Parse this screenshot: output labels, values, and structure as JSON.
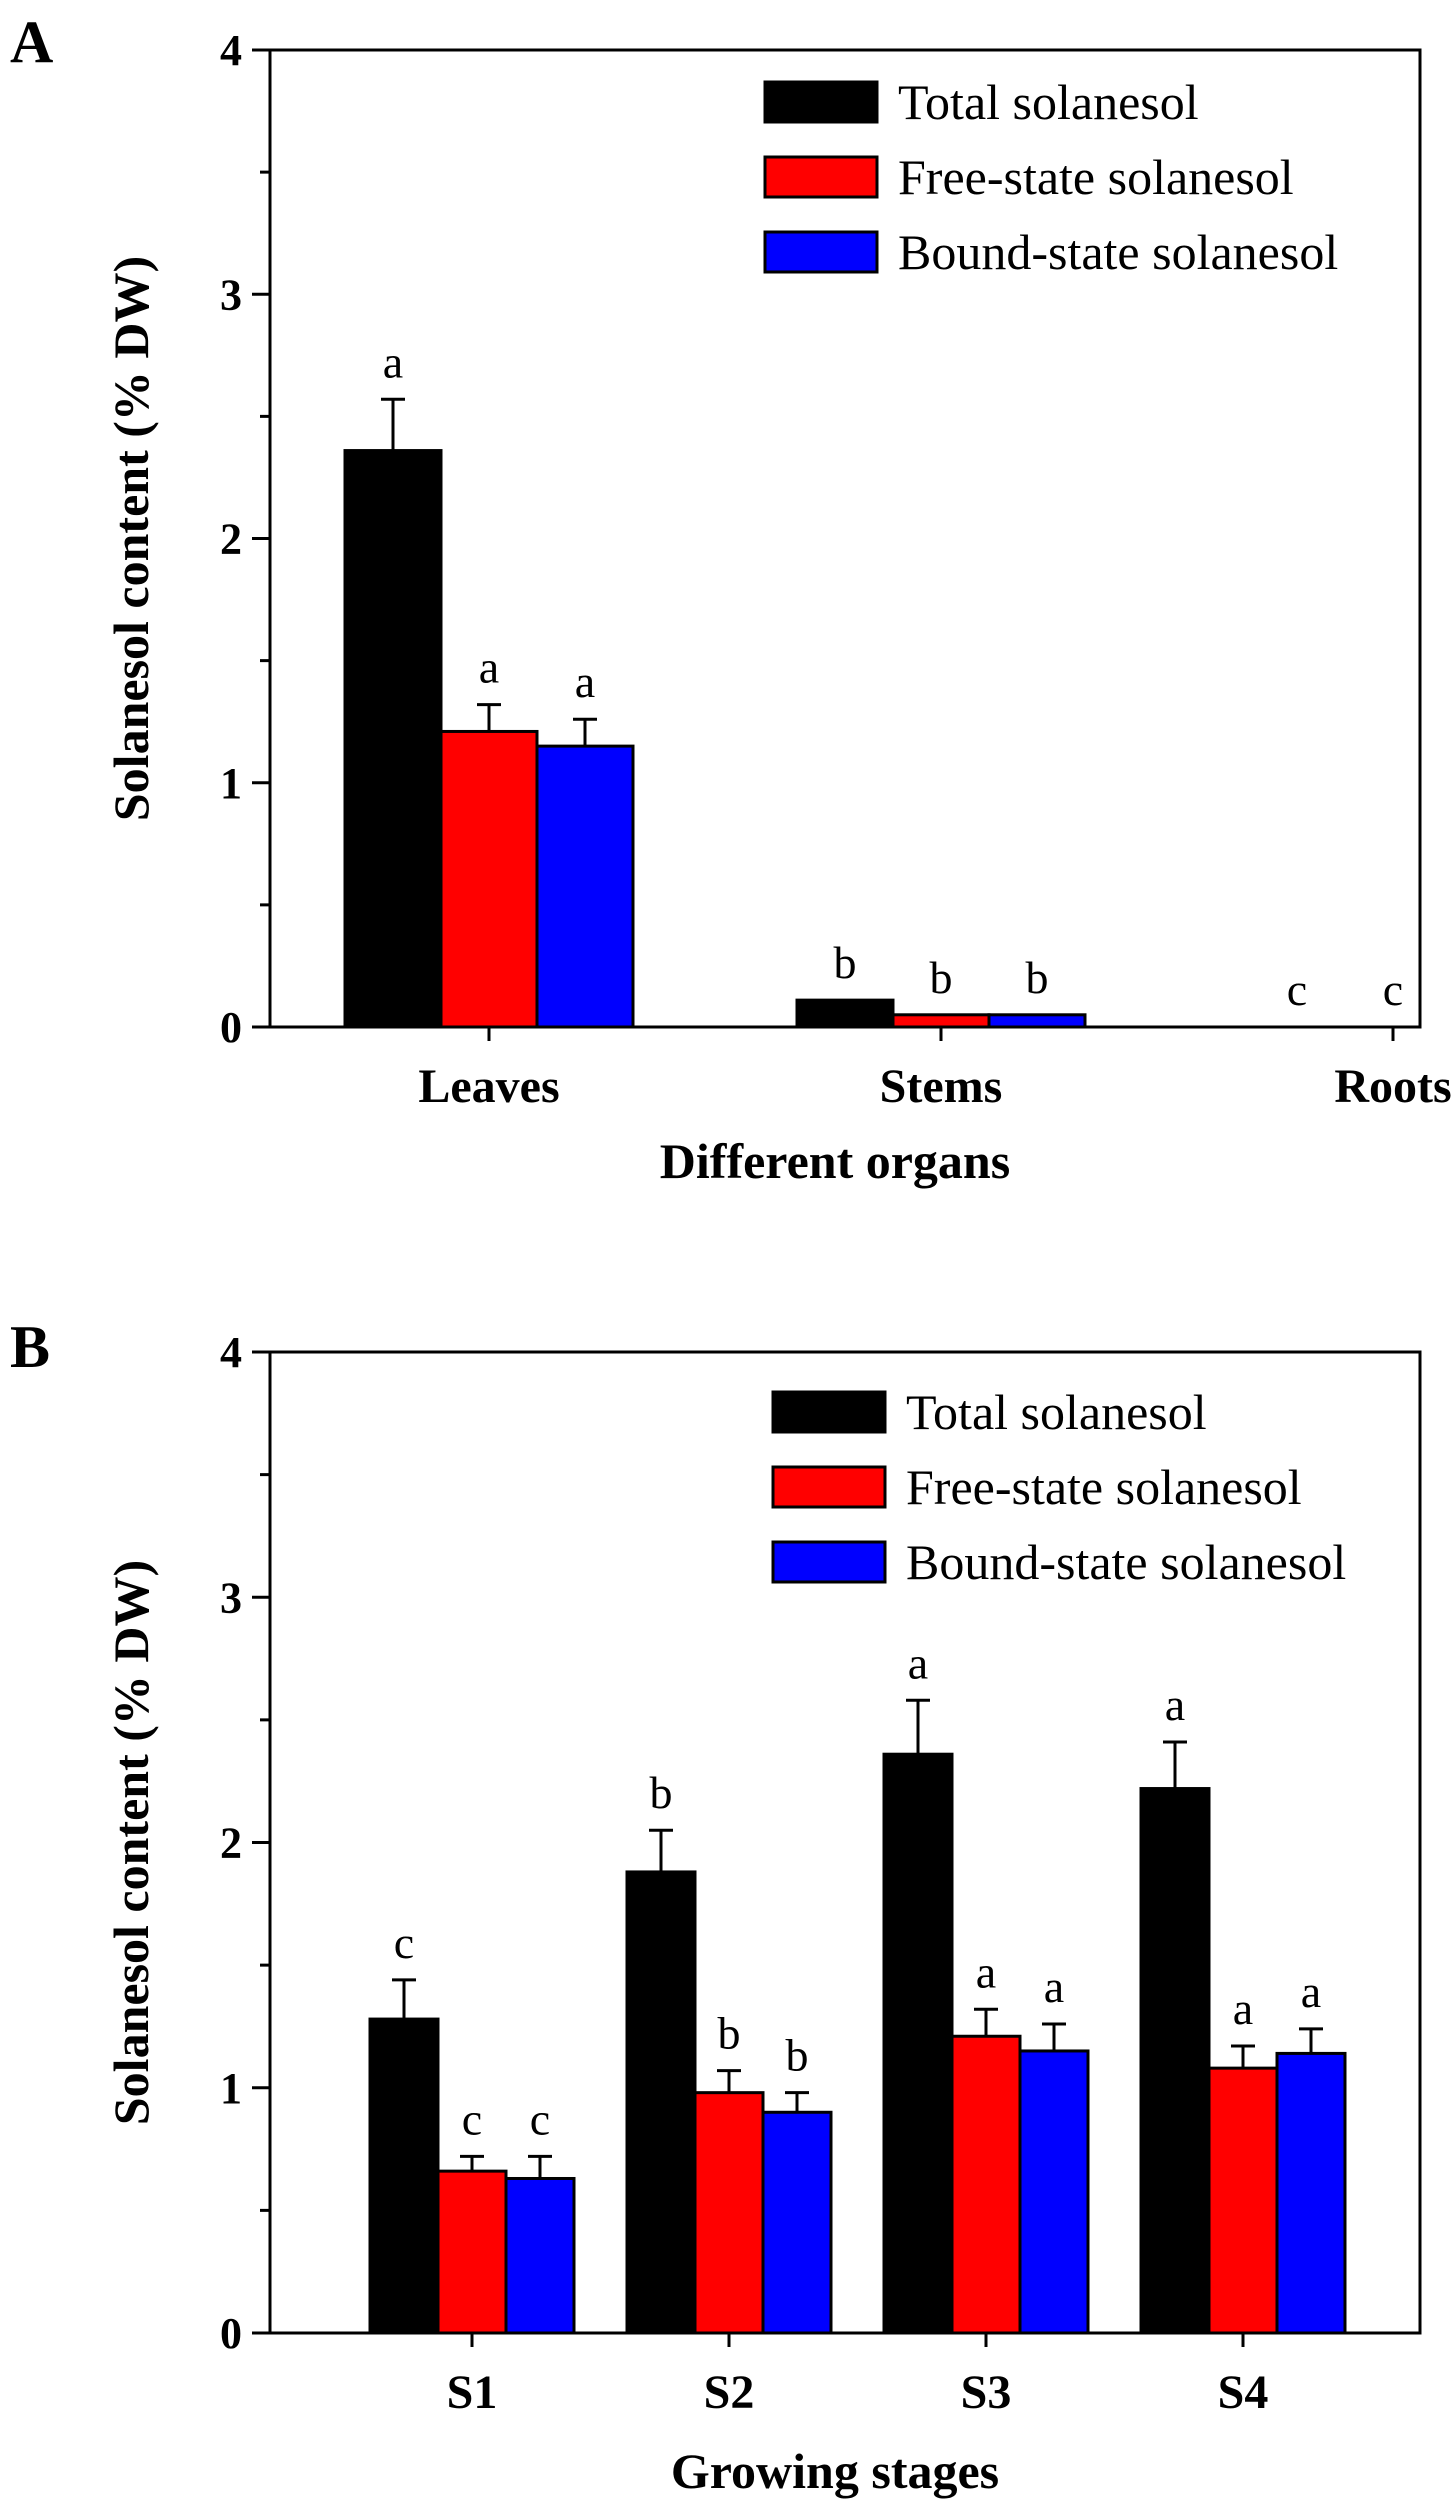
{
  "figure": {
    "panels": [
      {
        "letter": "A",
        "ylabel": "Solanesol content (% DW)",
        "xlabel": "Different organs",
        "legend": [
          "Total solanesol",
          "Free-state solanesol",
          "Bound-state solanesol"
        ]
      },
      {
        "letter": "B",
        "ylabel": "Solanesol content (% DW)",
        "xlabel": "Growing stages",
        "legend": [
          "Total solanesol",
          "Free-state solanesol",
          "Bound-state solanesol"
        ]
      }
    ]
  },
  "chart_data": [
    {
      "type": "bar",
      "panel": "A",
      "title": "",
      "xlabel": "Different organs",
      "ylabel": "Solanesol content (% DW)",
      "ylim": [
        0,
        4
      ],
      "yticks": [
        "0",
        "1",
        "2",
        "3",
        "4"
      ],
      "categories": [
        "Leaves",
        "Stems",
        "Roots"
      ],
      "legend_position": "top-right",
      "grid": false,
      "series": [
        {
          "name": "Total solanesol",
          "color": "#000000",
          "values": [
            2.36,
            0.11,
            0.0
          ],
          "errors": [
            0.21,
            0.0,
            0.0
          ],
          "labels": [
            "a",
            "b",
            "c"
          ]
        },
        {
          "name": "Free-state solanesol",
          "color": "#ff0000",
          "values": [
            1.21,
            0.05,
            0.0
          ],
          "errors": [
            0.11,
            0.0,
            0.0
          ],
          "labels": [
            "a",
            "b",
            "c"
          ]
        },
        {
          "name": "Bound-state solanesol",
          "color": "#0000ff",
          "values": [
            1.15,
            0.05,
            0.0
          ],
          "errors": [
            0.11,
            0.0,
            0.0
          ],
          "labels": [
            "a",
            "b",
            "c"
          ]
        }
      ]
    },
    {
      "type": "bar",
      "panel": "B",
      "title": "",
      "xlabel": "Growing stages",
      "ylabel": "Solanesol content (% DW)",
      "ylim": [
        0,
        4
      ],
      "yticks": [
        "0",
        "1",
        "2",
        "3",
        "4"
      ],
      "categories": [
        "S1",
        "S2",
        "S3",
        "S4"
      ],
      "legend_position": "top-right",
      "grid": false,
      "series": [
        {
          "name": "Total solanesol",
          "color": "#000000",
          "values": [
            1.28,
            1.88,
            2.36,
            2.22
          ],
          "errors": [
            0.16,
            0.17,
            0.22,
            0.19
          ],
          "labels": [
            "c",
            "b",
            "a",
            "a"
          ]
        },
        {
          "name": "Free-state solanesol",
          "color": "#ff0000",
          "values": [
            0.66,
            0.98,
            1.21,
            1.08
          ],
          "errors": [
            0.06,
            0.09,
            0.11,
            0.09
          ],
          "labels": [
            "c",
            "b",
            "a",
            "a"
          ]
        },
        {
          "name": "Bound-state solanesol",
          "color": "#0000ff",
          "values": [
            0.63,
            0.9,
            1.15,
            1.14
          ],
          "errors": [
            0.09,
            0.08,
            0.11,
            0.1
          ],
          "labels": [
            "c",
            "b",
            "a",
            "a"
          ]
        }
      ]
    }
  ]
}
